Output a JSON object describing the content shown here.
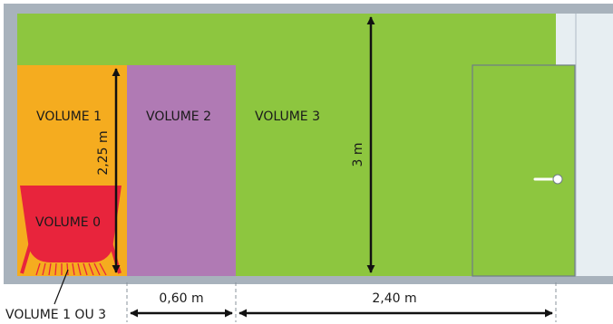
{
  "zones": {
    "volume_0": {
      "label": "VOLUME 0",
      "color": "#e8243c"
    },
    "volume_1": {
      "label": "VOLUME 1",
      "color": "#f5ac1f"
    },
    "volume_2": {
      "label": "VOLUME 2",
      "color": "#b07ab4"
    },
    "volume_3": {
      "label": "VOLUME 3",
      "color": "#8dc63f"
    }
  },
  "callout": {
    "label": "VOLUME 1 OU 3"
  },
  "dimensions": {
    "height_volume_1": "2,25 m",
    "height_room": "3 m",
    "width_volume_2": "0,60 m",
    "width_volume_3": "2,40 m"
  },
  "colors": {
    "wall": "#a8b2bc",
    "glass": "#e7eef2",
    "outline": "#6f7c86",
    "arrow": "#111111"
  },
  "icons": {
    "bathtub": "bathtub-icon",
    "door_handle": "door-handle-icon"
  }
}
